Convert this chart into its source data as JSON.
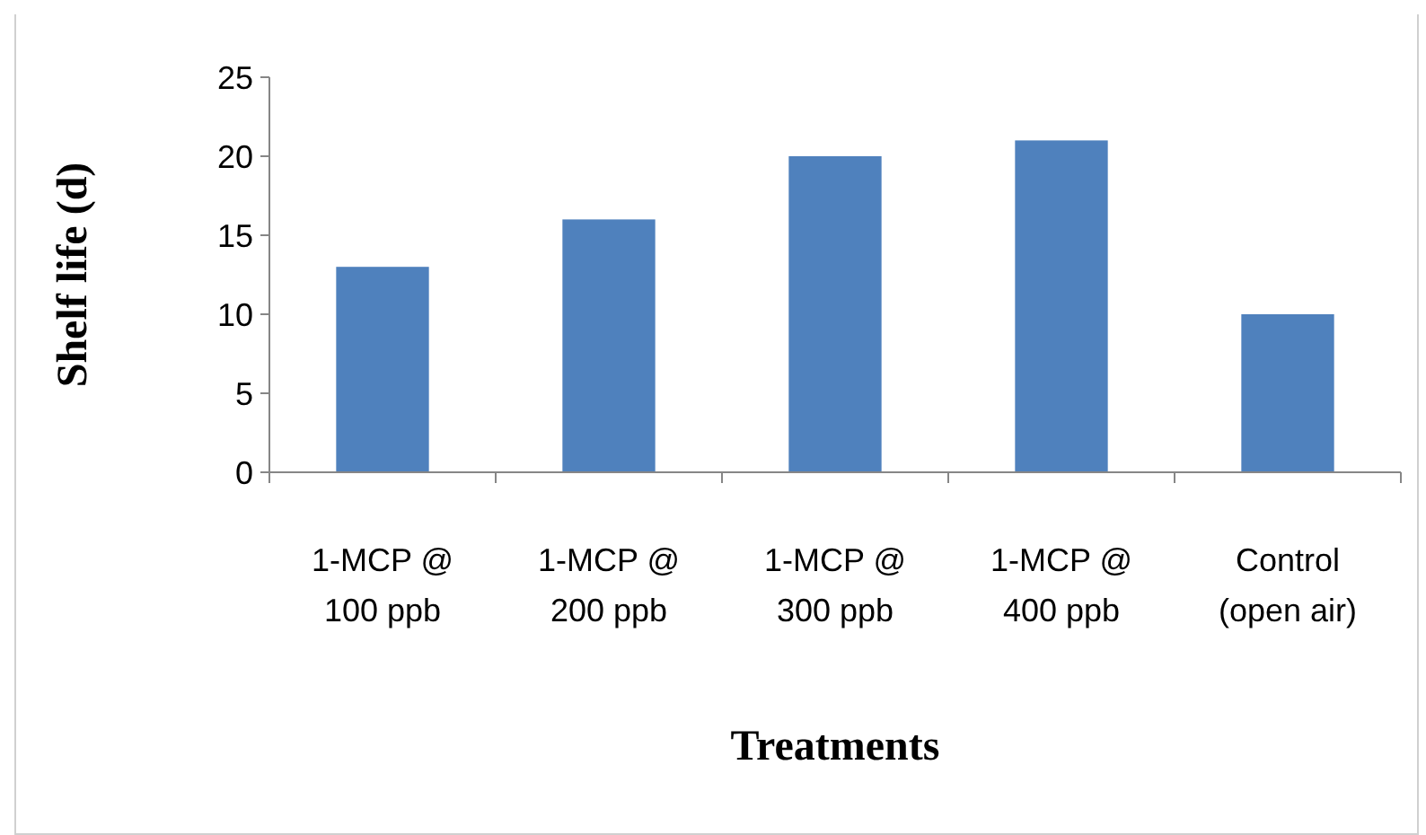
{
  "chart_data": {
    "type": "bar",
    "xlabel": "Treatments",
    "ylabel": "Shelf life (d)",
    "categories": [
      "1-MCP @\n100 ppb",
      "1-MCP @\n200 ppb",
      "1-MCP @\n300 ppb",
      "1-MCP @\n400 ppb",
      "Control\n(open air)"
    ],
    "values": [
      13,
      16,
      20,
      21,
      10
    ],
    "color": "#4f81bd",
    "ylim": [
      0,
      25
    ],
    "yticks": [
      0,
      5,
      10,
      15,
      20,
      25
    ],
    "grid": false
  }
}
